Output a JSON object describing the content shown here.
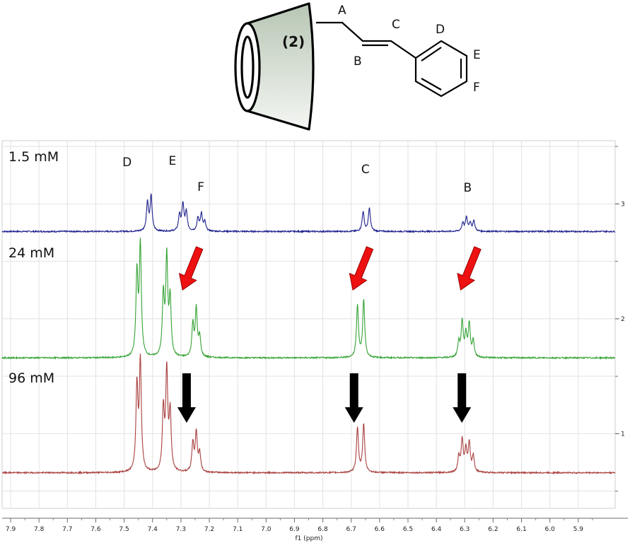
{
  "structure": {
    "cd_label": "(2)",
    "atom_labels": {
      "A": "A",
      "B": "B",
      "C": "C",
      "D": "D",
      "E": "E",
      "F": "F"
    }
  },
  "chart_data": {
    "type": "line",
    "xlabel": "f1 (ppm)",
    "x_reversed": true,
    "xlim": [
      7.93,
      5.77
    ],
    "x_ticks": [
      7.9,
      7.8,
      7.7,
      7.6,
      7.5,
      7.4,
      7.3,
      7.2,
      7.1,
      7.0,
      6.9,
      6.8,
      6.7,
      6.6,
      6.5,
      6.4,
      6.3,
      6.2,
      6.1,
      6.0,
      5.9
    ],
    "ylim": [
      0.35,
      3.55
    ],
    "y_ticks": [
      1,
      2,
      3
    ],
    "grid": true,
    "colors": {
      "1.5 mM": "#1c1f8c",
      "24 mM": "#35a335",
      "96 mM": "#a8403f",
      "red_arrow": "#ee1111",
      "black_arrow": "#000000"
    },
    "series": [
      {
        "name": "1.5 mM",
        "baseline": 2.76,
        "peaks": [
          {
            "ppm": 7.418,
            "height": 0.25
          },
          {
            "ppm": 7.405,
            "height": 0.3
          },
          {
            "ppm": 7.305,
            "height": 0.14
          },
          {
            "ppm": 7.293,
            "height": 0.23
          },
          {
            "ppm": 7.281,
            "height": 0.16
          },
          {
            "ppm": 7.24,
            "height": 0.11
          },
          {
            "ppm": 7.228,
            "height": 0.15
          },
          {
            "ppm": 7.216,
            "height": 0.08
          },
          {
            "ppm": 6.658,
            "height": 0.17
          },
          {
            "ppm": 6.636,
            "height": 0.2
          },
          {
            "ppm": 6.307,
            "height": 0.07
          },
          {
            "ppm": 6.294,
            "height": 0.12
          },
          {
            "ppm": 6.281,
            "height": 0.07
          },
          {
            "ppm": 6.268,
            "height": 0.09
          }
        ],
        "peak_labels": [
          {
            "text": "D",
            "ppm": 7.49
          },
          {
            "text": "E",
            "ppm": 7.33
          },
          {
            "text": "F",
            "ppm": 7.23
          },
          {
            "text": "C",
            "ppm": 6.65
          },
          {
            "text": "B",
            "ppm": 6.29
          }
        ]
      },
      {
        "name": "24 mM",
        "baseline": 1.66,
        "peaks": [
          {
            "ppm": 7.455,
            "height": 0.72
          },
          {
            "ppm": 7.443,
            "height": 0.97
          },
          {
            "ppm": 7.362,
            "height": 0.52
          },
          {
            "ppm": 7.35,
            "height": 0.85
          },
          {
            "ppm": 7.338,
            "height": 0.49
          },
          {
            "ppm": 7.258,
            "height": 0.28
          },
          {
            "ppm": 7.246,
            "height": 0.41
          },
          {
            "ppm": 7.234,
            "height": 0.17
          },
          {
            "ppm": 6.678,
            "height": 0.45
          },
          {
            "ppm": 6.656,
            "height": 0.5
          },
          {
            "ppm": 6.321,
            "height": 0.13
          },
          {
            "ppm": 6.309,
            "height": 0.31
          },
          {
            "ppm": 6.296,
            "height": 0.19
          },
          {
            "ppm": 6.284,
            "height": 0.29
          },
          {
            "ppm": 6.27,
            "height": 0.14
          }
        ],
        "shift_arrows": [
          {
            "ppm": 7.29
          },
          {
            "ppm": 6.69
          },
          {
            "ppm": 6.31
          }
        ]
      },
      {
        "name": "96 mM",
        "baseline": 0.66,
        "peaks": [
          {
            "ppm": 7.455,
            "height": 0.74
          },
          {
            "ppm": 7.443,
            "height": 0.95
          },
          {
            "ppm": 7.362,
            "height": 0.53
          },
          {
            "ppm": 7.35,
            "height": 0.86
          },
          {
            "ppm": 7.338,
            "height": 0.5
          },
          {
            "ppm": 7.258,
            "height": 0.25
          },
          {
            "ppm": 7.246,
            "height": 0.34
          },
          {
            "ppm": 7.234,
            "height": 0.16
          },
          {
            "ppm": 6.678,
            "height": 0.39
          },
          {
            "ppm": 6.656,
            "height": 0.42
          },
          {
            "ppm": 6.321,
            "height": 0.13
          },
          {
            "ppm": 6.309,
            "height": 0.28
          },
          {
            "ppm": 6.296,
            "height": 0.19
          },
          {
            "ppm": 6.284,
            "height": 0.25
          },
          {
            "ppm": 6.27,
            "height": 0.14
          }
        ],
        "shift_arrows": [
          {
            "ppm": 7.28
          },
          {
            "ppm": 6.69
          },
          {
            "ppm": 6.31
          }
        ]
      }
    ]
  }
}
